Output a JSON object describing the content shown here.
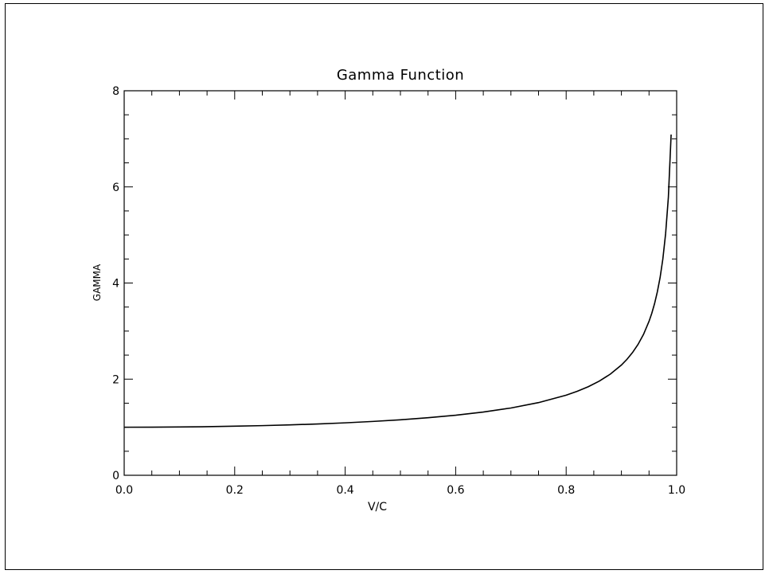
{
  "chart_data": {
    "type": "line",
    "title": "Gamma Function",
    "xlabel": "V/C",
    "ylabel": "GAMMA",
    "xlim": [
      0.0,
      1.0
    ],
    "ylim": [
      0,
      8
    ],
    "x_ticks": [
      "0.0",
      "0.2",
      "0.4",
      "0.6",
      "0.8",
      "1.0"
    ],
    "y_ticks": [
      "0",
      "2",
      "4",
      "6",
      "8"
    ],
    "grid": false,
    "series": [
      {
        "x": [
          0.0,
          0.05,
          0.1,
          0.15,
          0.2,
          0.25,
          0.3,
          0.35,
          0.4,
          0.45,
          0.5,
          0.55,
          0.6,
          0.65,
          0.7,
          0.75,
          0.8,
          0.82,
          0.84,
          0.86,
          0.88,
          0.9,
          0.91,
          0.92,
          0.93,
          0.94,
          0.95,
          0.955,
          0.96,
          0.965,
          0.97,
          0.975,
          0.98,
          0.985,
          0.99
        ],
        "values": [
          1.0,
          1.001,
          1.005,
          1.011,
          1.021,
          1.033,
          1.048,
          1.068,
          1.091,
          1.12,
          1.155,
          1.197,
          1.25,
          1.316,
          1.4,
          1.512,
          1.667,
          1.747,
          1.843,
          1.96,
          2.105,
          2.294,
          2.412,
          2.552,
          2.721,
          2.931,
          3.203,
          3.371,
          3.571,
          3.815,
          4.113,
          4.5,
          5.025,
          5.783,
          7.089
        ]
      }
    ]
  }
}
